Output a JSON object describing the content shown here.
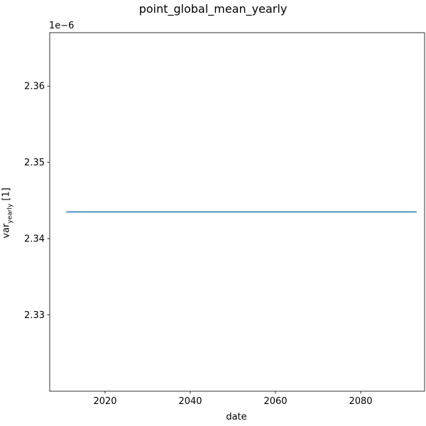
{
  "chart_data": {
    "type": "line",
    "title": "point_global_mean_yearly",
    "xlabel": "date",
    "ylabel_main": "var",
    "ylabel_sub": "yearly",
    "ylabel_unit": " [1]",
    "y_offset_text": "1e−6",
    "xlim": [
      2007,
      2095
    ],
    "ylim": [
      2.32,
      2.367
    ],
    "x_ticks": [
      2020,
      2040,
      2060,
      2080
    ],
    "x_tick_labels": [
      "2020",
      "2040",
      "2060",
      "2080"
    ],
    "y_ticks": [
      2.33,
      2.34,
      2.35,
      2.36
    ],
    "y_tick_labels": [
      "2.33",
      "2.34",
      "2.35",
      "2.36"
    ],
    "grid": false,
    "series": [
      {
        "color": "#1f77b4",
        "x": [
          2011,
          2093
        ],
        "y": [
          2.3435,
          2.3435
        ]
      }
    ]
  }
}
